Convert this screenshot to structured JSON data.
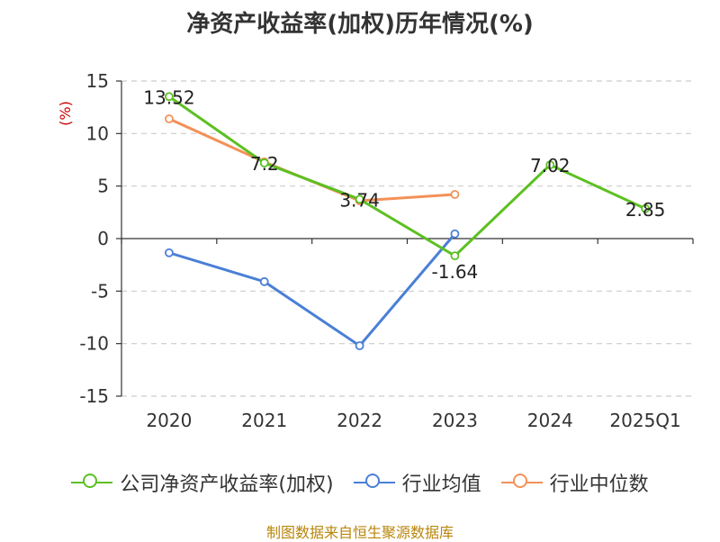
{
  "chart_data": {
    "type": "line",
    "title": "净资产收益率(加权)历年情况(%)",
    "ylabel": "(%)",
    "categories": [
      "2020",
      "2021",
      "2022",
      "2023",
      "2024",
      "2025Q1"
    ],
    "ylim": [
      -15,
      15
    ],
    "yticks": [
      15,
      10,
      5,
      0,
      -5,
      -10,
      -15
    ],
    "grid": true,
    "legend_position": "bottom",
    "series": [
      {
        "name": "公司净资产收益率(加权)",
        "color": "#5cc021",
        "values": [
          13.52,
          7.2,
          3.74,
          -1.64,
          7.02,
          2.85
        ],
        "labels": [
          "13.52",
          "7.2",
          "3.74",
          "-1.64",
          "7.02",
          "2.85"
        ]
      },
      {
        "name": "行业均值",
        "color": "#4a7fd6",
        "values": [
          -1.35,
          -4.1,
          -10.2,
          0.45,
          null,
          null
        ]
      },
      {
        "name": "行业中位数",
        "color": "#f39157",
        "values": [
          11.4,
          7.3,
          3.6,
          4.2,
          null,
          null
        ]
      }
    ]
  },
  "source": "制图数据来自恒生聚源数据库"
}
